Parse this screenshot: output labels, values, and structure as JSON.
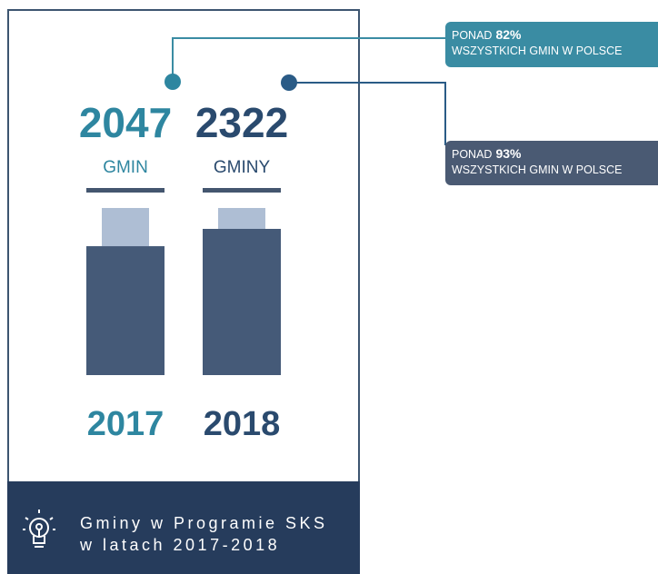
{
  "columns": [
    {
      "value": "2047",
      "unit": "GMIN",
      "year": "2017",
      "number": 2047
    },
    {
      "value": "2322",
      "unit": "GMINY",
      "year": "2018",
      "number": 2322
    }
  ],
  "callouts": [
    {
      "prefix": "PONAD",
      "share": "82%",
      "text": "WSZYSTKICH GMIN W POLSCE"
    },
    {
      "prefix": "PONAD",
      "share": "93%",
      "text": "WSZYSTKICH GMIN W POLSCE"
    }
  ],
  "footer": {
    "line1": "Gminy w Programie SKS",
    "line2": "w latach 2017-2018"
  }
}
